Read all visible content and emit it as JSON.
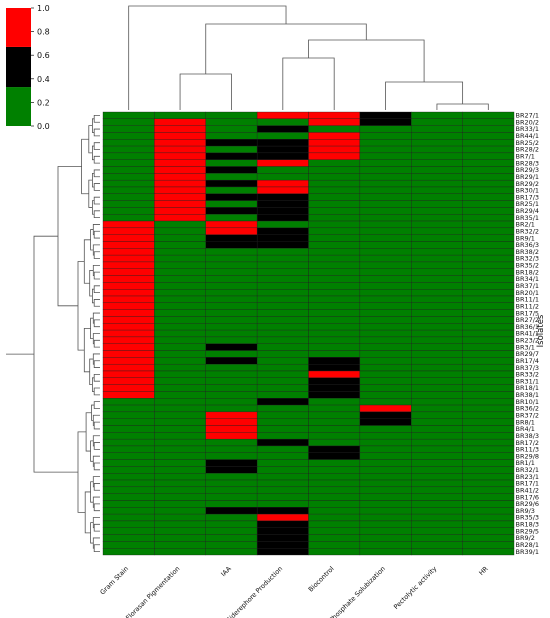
{
  "chart_data": {
    "type": "heatmap",
    "title": "",
    "ylabel": "Isolates",
    "columns": [
      "Gram Stain",
      "Florasan Pigmentation",
      "IAA",
      "Siderephore Production",
      "Biocontrol",
      "Phosphate Solubization",
      "Pectolytic activity",
      "HR"
    ],
    "rows": [
      "BR27/1",
      "BR20/2",
      "BR33/1",
      "BR44/1",
      "BR25/2",
      "BR28/2",
      "BR7/1",
      "BR28/3",
      "BR29/3",
      "BR29/1",
      "BR29/2",
      "BR30/1",
      "BR17/3",
      "BR25/1",
      "BR29/4",
      "BR35/1",
      "BR2/1",
      "BR32/2",
      "BR9/1",
      "BR36/3",
      "BR38/2",
      "BR32/3",
      "BR35/2",
      "BR18/2",
      "BR34/1",
      "BR37/1",
      "BR20/1",
      "BR11/1",
      "BR11/2",
      "BR17/5",
      "BR27/2",
      "BR36/1",
      "BR41/1",
      "BR23/2",
      "BR3/1",
      "BR29/7",
      "BR17/4",
      "BR37/3",
      "BR33/2",
      "BR31/1",
      "BR18/1",
      "BR38/1",
      "BR10/1",
      "BR36/2",
      "BR37/2",
      "BR8/1",
      "BR4/1",
      "BR38/3",
      "BR17/2",
      "BR11/3",
      "BR29/8",
      "BR1/1",
      "BR32/1",
      "BR23/1",
      "BR17/1",
      "BR41/2",
      "BR17/6",
      "BR29/6",
      "BR9/3",
      "BR35/3",
      "BR18/3",
      "BR29/5",
      "BR9/2",
      "BR28/1",
      "BR39/1"
    ],
    "values": [
      [
        0,
        0,
        0,
        1,
        1,
        0.5,
        0,
        0
      ],
      [
        0,
        1,
        0,
        0,
        1,
        0.5,
        0,
        0
      ],
      [
        0,
        1,
        0,
        0.5,
        0,
        0,
        0,
        0
      ],
      [
        0,
        1,
        0,
        0,
        1,
        0,
        0,
        0
      ],
      [
        0,
        1,
        0.5,
        0.5,
        1,
        0,
        0,
        0
      ],
      [
        0,
        1,
        0,
        0.5,
        1,
        0,
        0,
        0
      ],
      [
        0,
        1,
        0.5,
        0.5,
        1,
        0,
        0,
        0
      ],
      [
        0,
        1,
        0,
        1,
        0,
        0,
        0,
        0
      ],
      [
        0,
        1,
        0.5,
        0,
        0,
        0,
        0,
        0
      ],
      [
        0,
        1,
        0,
        0,
        0,
        0,
        0,
        0
      ],
      [
        0,
        1,
        0.5,
        1,
        0,
        0,
        0,
        0
      ],
      [
        0,
        1,
        0,
        1,
        0,
        0,
        0,
        0
      ],
      [
        0,
        1,
        0.5,
        0.5,
        0,
        0,
        0,
        0
      ],
      [
        0,
        1,
        0,
        0.5,
        0,
        0,
        0,
        0
      ],
      [
        0,
        1,
        0.5,
        0.5,
        0,
        0,
        0,
        0
      ],
      [
        0,
        1,
        0,
        0.5,
        0,
        0,
        0,
        0
      ],
      [
        1,
        0,
        1,
        0,
        0,
        0,
        0,
        0
      ],
      [
        1,
        0,
        1,
        0.5,
        0,
        0,
        0,
        0
      ],
      [
        1,
        0,
        0.5,
        0.5,
        0,
        0,
        0,
        0
      ],
      [
        1,
        0,
        0.5,
        0.5,
        0,
        0,
        0,
        0
      ],
      [
        1,
        0,
        0,
        0,
        0,
        0,
        0,
        0
      ],
      [
        1,
        0,
        0,
        0,
        0,
        0,
        0,
        0
      ],
      [
        1,
        0,
        0,
        0,
        0,
        0,
        0,
        0
      ],
      [
        1,
        0,
        0,
        0,
        0,
        0,
        0,
        0
      ],
      [
        1,
        0,
        0,
        0,
        0,
        0,
        0,
        0
      ],
      [
        1,
        0,
        0,
        0,
        0,
        0,
        0,
        0
      ],
      [
        1,
        0,
        0,
        0,
        0,
        0,
        0,
        0
      ],
      [
        1,
        0,
        0,
        0,
        0,
        0,
        0,
        0
      ],
      [
        1,
        0,
        0,
        0,
        0,
        0,
        0,
        0
      ],
      [
        1,
        0,
        0,
        0,
        0,
        0,
        0,
        0
      ],
      [
        1,
        0,
        0,
        0,
        0,
        0,
        0,
        0
      ],
      [
        1,
        0,
        0,
        0,
        0,
        0,
        0,
        0
      ],
      [
        1,
        0,
        0,
        0,
        0,
        0,
        0,
        0
      ],
      [
        1,
        0,
        0,
        0,
        0,
        0,
        0,
        0
      ],
      [
        1,
        0,
        0.5,
        0,
        0,
        0,
        0,
        0
      ],
      [
        1,
        0,
        0,
        0,
        0,
        0,
        0,
        0
      ],
      [
        1,
        0,
        0.5,
        0,
        0.5,
        0,
        0,
        0
      ],
      [
        1,
        0,
        0,
        0,
        0.5,
        0,
        0,
        0
      ],
      [
        1,
        0,
        0,
        0,
        1,
        0,
        0,
        0
      ],
      [
        1,
        0,
        0,
        0,
        0.5,
        0,
        0,
        0
      ],
      [
        1,
        0,
        0,
        0,
        0.5,
        0,
        0,
        0
      ],
      [
        1,
        0,
        0,
        0,
        0.5,
        0,
        0,
        0
      ],
      [
        0,
        0,
        0,
        0.5,
        0,
        0,
        0,
        0
      ],
      [
        0,
        0,
        0,
        0,
        0,
        1,
        0,
        0
      ],
      [
        0,
        0,
        1,
        0,
        0,
        0.5,
        0,
        0
      ],
      [
        0,
        0,
        1,
        0,
        0,
        0.5,
        0,
        0
      ],
      [
        0,
        0,
        1,
        0,
        0,
        0,
        0,
        0
      ],
      [
        0,
        0,
        1,
        0,
        0,
        0,
        0,
        0
      ],
      [
        0,
        0,
        0,
        0.5,
        0,
        0,
        0,
        0
      ],
      [
        0,
        0,
        0,
        0,
        0.5,
        0,
        0,
        0
      ],
      [
        0,
        0,
        0,
        0,
        0.5,
        0,
        0,
        0
      ],
      [
        0,
        0,
        0.5,
        0,
        0,
        0,
        0,
        0
      ],
      [
        0,
        0,
        0.5,
        0,
        0,
        0,
        0,
        0
      ],
      [
        0,
        0,
        0,
        0,
        0,
        0,
        0,
        0
      ],
      [
        0,
        0,
        0,
        0,
        0,
        0,
        0,
        0
      ],
      [
        0,
        0,
        0,
        0,
        0,
        0,
        0,
        0
      ],
      [
        0,
        0,
        0,
        0,
        0,
        0,
        0,
        0
      ],
      [
        0,
        0,
        0,
        0,
        0,
        0,
        0,
        0
      ],
      [
        0,
        0,
        0.5,
        0.5,
        0,
        0,
        0,
        0
      ],
      [
        0,
        0,
        0,
        1,
        0,
        0,
        0,
        0
      ],
      [
        0,
        0,
        0,
        0.5,
        0,
        0,
        0,
        0
      ],
      [
        0,
        0,
        0,
        0.5,
        0,
        0,
        0,
        0
      ],
      [
        0,
        0,
        0,
        0.5,
        0,
        0,
        0,
        0
      ],
      [
        0,
        0,
        0,
        0.5,
        0,
        0,
        0,
        0
      ],
      [
        0,
        0,
        0,
        0.5,
        0,
        0,
        0,
        0
      ]
    ],
    "colorbar": {
      "ticks": [
        "1.0",
        "0.8",
        "0.6",
        "0.4",
        "0.2",
        "0.0"
      ],
      "bands": [
        {
          "min": 0.0,
          "max": 0.33,
          "color": "#008000"
        },
        {
          "min": 0.33,
          "max": 0.67,
          "color": "#000000"
        },
        {
          "min": 0.67,
          "max": 1.0,
          "color": "#ff0000"
        }
      ]
    },
    "row_dendrogram": true,
    "col_dendrogram": true,
    "grid": false
  }
}
